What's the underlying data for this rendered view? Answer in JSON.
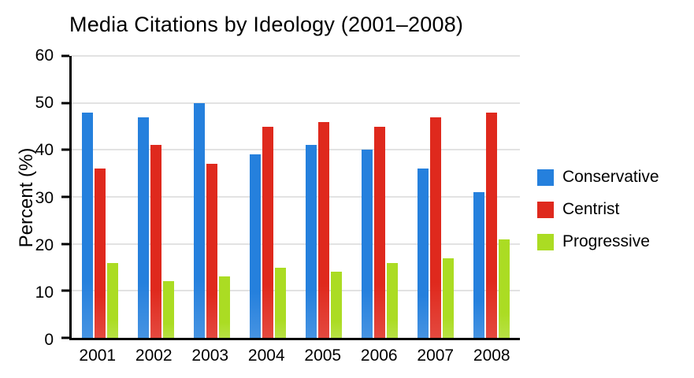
{
  "chart_data": {
    "type": "bar",
    "title": "Media Citations by Ideology (2001–2008)",
    "xlabel": "",
    "ylabel": "Percent (%)",
    "ylim": [
      0,
      60
    ],
    "yticks": [
      0,
      10,
      20,
      30,
      40,
      50,
      60
    ],
    "grid": true,
    "legend_position": "right",
    "categories": [
      "2001",
      "2002",
      "2003",
      "2004",
      "2005",
      "2006",
      "2007",
      "2008"
    ],
    "series": [
      {
        "name": "Conservative",
        "color": "#2580dd",
        "values": [
          48,
          47,
          50,
          39,
          41,
          40,
          36,
          31
        ]
      },
      {
        "name": "Centrist",
        "color": "#df291d",
        "values": [
          36,
          41,
          37,
          45,
          46,
          45,
          47,
          48
        ]
      },
      {
        "name": "Progressive",
        "color": "#abdc23",
        "values": [
          16,
          12,
          13,
          15,
          14,
          16,
          17,
          21
        ]
      }
    ]
  }
}
